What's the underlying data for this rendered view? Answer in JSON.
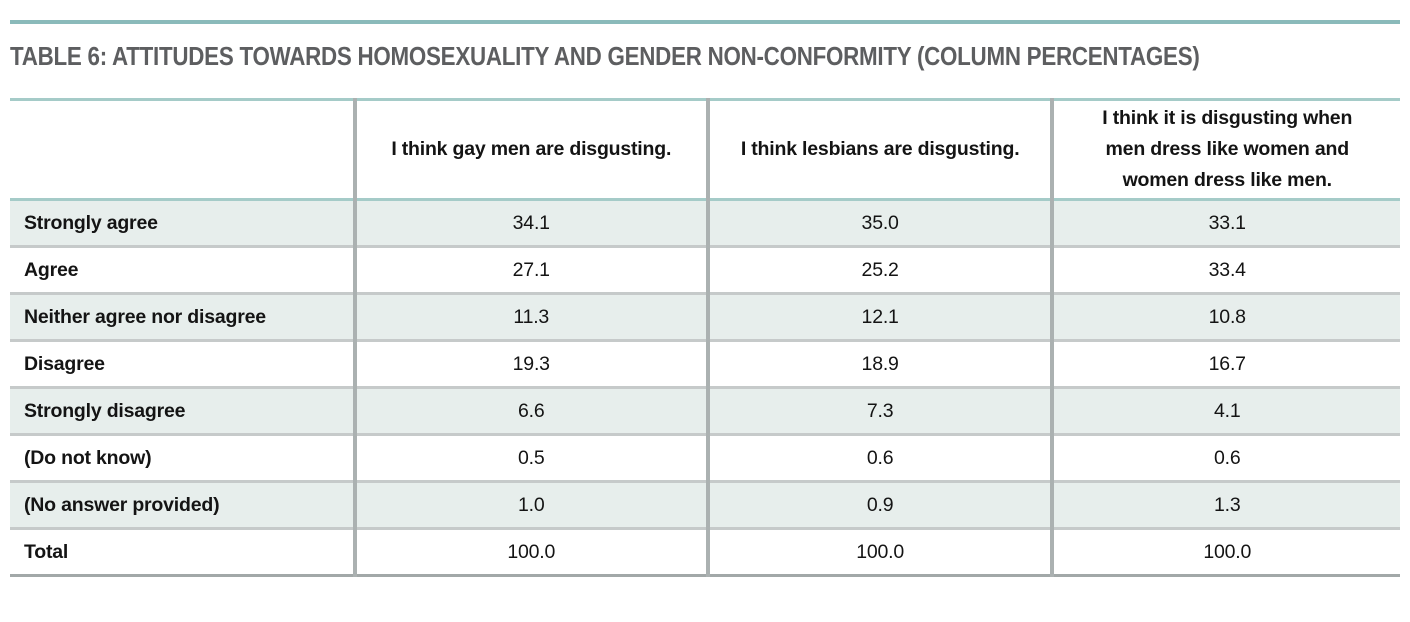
{
  "page": {
    "title": "TABLE 6: ATTITUDES TOWARDS HOMOSEXUALITY AND GENDER NON-CONFORMITY (COLUMN PERCENTAGES)"
  },
  "colors": {
    "accent_rule_teal": "#8ababa",
    "table_teal_border": "#a5cbc8",
    "row_tint": "#e7eeec",
    "grid_gray": "#abb1b1",
    "title_text": "#5d5e60"
  },
  "table": {
    "corner_label": "",
    "columns": [
      "I think gay men are disgusting.",
      "I think lesbians are disgusting.",
      "I think it is disgusting when men dress like women and women dress like men."
    ],
    "rows": [
      {
        "label": "Strongly agree",
        "values": [
          "34.1",
          "35.0",
          "33.1"
        ]
      },
      {
        "label": "Agree",
        "values": [
          "27.1",
          "25.2",
          "33.4"
        ]
      },
      {
        "label": "Neither agree nor disagree",
        "values": [
          "11.3",
          "12.1",
          "10.8"
        ]
      },
      {
        "label": "Disagree",
        "values": [
          "19.3",
          "18.9",
          "16.7"
        ]
      },
      {
        "label": "Strongly disagree",
        "values": [
          "6.6",
          "7.3",
          "4.1"
        ]
      },
      {
        "label": "(Do not know)",
        "values": [
          "0.5",
          "0.6",
          "0.6"
        ]
      },
      {
        "label": "(No answer provided)",
        "values": [
          "1.0",
          "0.9",
          "1.3"
        ]
      },
      {
        "label": "Total",
        "values": [
          "100.0",
          "100.0",
          "100.0"
        ]
      }
    ]
  },
  "chart_data": {
    "type": "table",
    "title": "TABLE 6: ATTITUDES TOWARDS HOMOSEXUALITY AND GENDER NON-CONFORMITY (COLUMN PERCENTAGES)",
    "categories": [
      "Strongly agree",
      "Agree",
      "Neither agree nor disagree",
      "Disagree",
      "Strongly disagree",
      "(Do not know)",
      "(No answer provided)",
      "Total"
    ],
    "series": [
      {
        "name": "I think gay men are disgusting.",
        "values": [
          34.1,
          27.1,
          11.3,
          19.3,
          6.6,
          0.5,
          1.0,
          100.0
        ]
      },
      {
        "name": "I think lesbians are disgusting.",
        "values": [
          35.0,
          25.2,
          12.1,
          18.9,
          7.3,
          0.6,
          0.9,
          100.0
        ]
      },
      {
        "name": "I think it is disgusting when men dress like women and women dress like men.",
        "values": [
          33.1,
          33.4,
          10.8,
          16.7,
          4.1,
          0.6,
          1.3,
          100.0
        ]
      }
    ]
  }
}
